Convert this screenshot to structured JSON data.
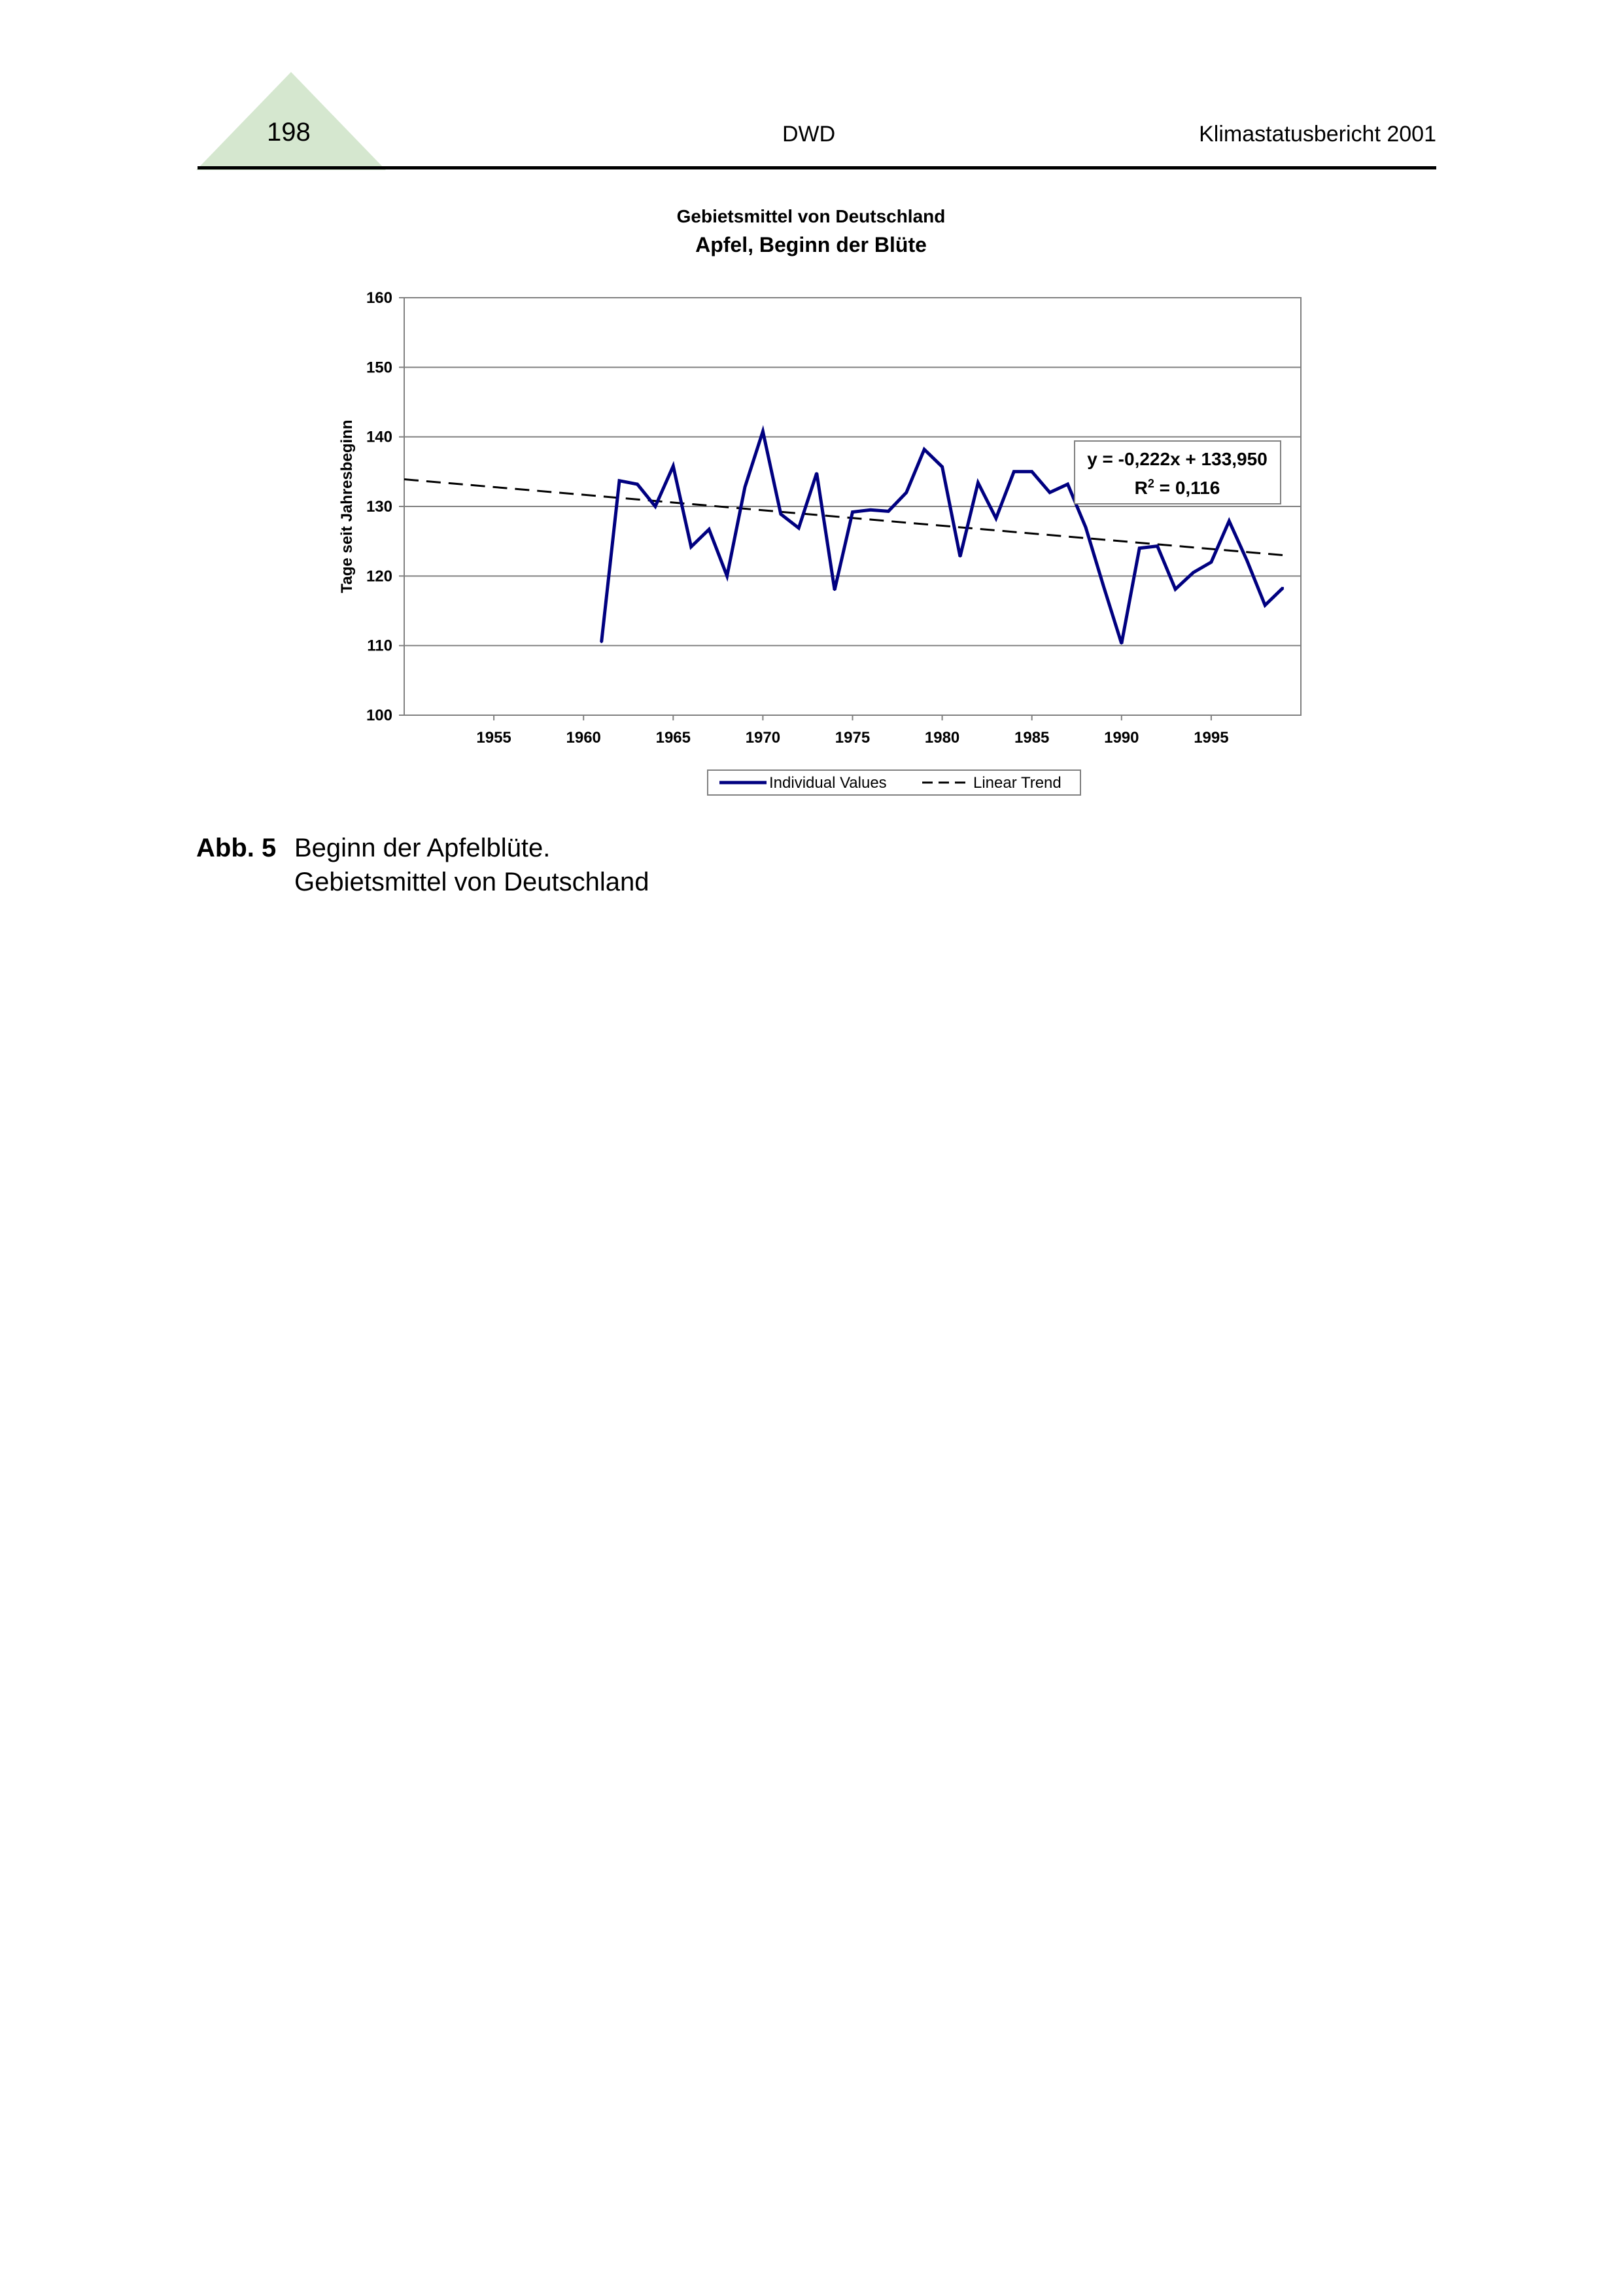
{
  "header": {
    "page_number": "198",
    "center": "DWD",
    "right": "Klimastatusbericht 2001",
    "triangle_color": "#d5e7cf"
  },
  "chart_data": {
    "type": "line",
    "title": "Gebietsmittel von Deutschland",
    "subtitle": "Apfel, Beginn der Blüte",
    "xlabel": "",
    "ylabel": "Tage seit Jahresbeginn",
    "xlim": [
      1950,
      2000
    ],
    "ylim": [
      100,
      160
    ],
    "yticks": [
      100,
      110,
      120,
      130,
      140,
      150,
      160
    ],
    "xticks": [
      1955,
      1960,
      1965,
      1970,
      1975,
      1980,
      1985,
      1990,
      1995
    ],
    "grid": "horizontal",
    "legend_position": "bottom",
    "series": [
      {
        "name": "Individual Values",
        "color": "#000080",
        "x": [
          1961,
          1962,
          1963,
          1964,
          1965,
          1966,
          1967,
          1968,
          1969,
          1970,
          1971,
          1972,
          1973,
          1974,
          1975,
          1976,
          1977,
          1978,
          1979,
          1980,
          1981,
          1982,
          1983,
          1984,
          1985,
          1986,
          1987,
          1988,
          1989,
          1990,
          1991,
          1992,
          1993,
          1994,
          1995,
          1996,
          1997,
          1998,
          1999
        ],
        "values": [
          110.5,
          133.7,
          133.2,
          130,
          135.8,
          124.2,
          126.7,
          120,
          132.8,
          140.8,
          128.9,
          126.9,
          134.8,
          118,
          129.2,
          129.5,
          129.3,
          132,
          138.2,
          135.7,
          122.8,
          133.4,
          128.3,
          135,
          135,
          132,
          133.2,
          127,
          118.5,
          110.3,
          124,
          124.3,
          118.1,
          120.5,
          122,
          127.9,
          122.2,
          115.8,
          118.3
        ]
      },
      {
        "name": "Linear Trend",
        "color": "#000000",
        "dashed": true,
        "x": [
          1950,
          1999
        ],
        "values": [
          133.9,
          123.0
        ]
      }
    ],
    "annotation": {
      "equation": "y = -0,222x + 133,950",
      "r2_prefix": "R",
      "r2_sup": "2",
      "r2_value": " = 0,116"
    }
  },
  "caption": {
    "label": "Abb. 5",
    "line1": "Beginn der Apfelblüte.",
    "line2": "Gebietsmittel von Deutschland"
  }
}
